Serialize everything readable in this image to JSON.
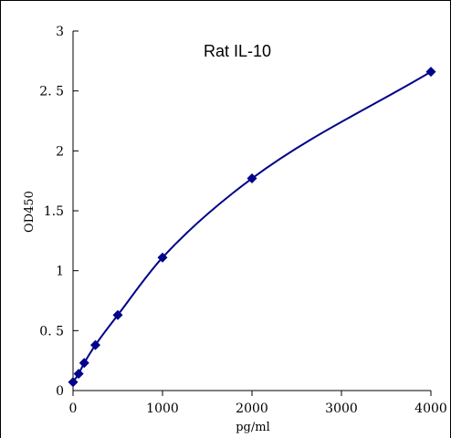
{
  "chart_data": {
    "type": "scatter",
    "title": "Rat IL-10",
    "xlabel": "pg/ml",
    "ylabel": "OD450",
    "xlim": [
      0,
      4000
    ],
    "ylim": [
      0,
      3
    ],
    "x_ticks": [
      "0",
      "1000",
      "2000",
      "3000",
      "4000"
    ],
    "y_ticks": [
      "0",
      "0. 5",
      "1",
      "1.5",
      "2",
      "2. 5",
      "3"
    ],
    "grid": false,
    "legend": "none",
    "series": [
      {
        "x": [
          0,
          62.5,
          125,
          250,
          500,
          1000,
          2000,
          4000
        ],
        "y": [
          0.07,
          0.14,
          0.23,
          0.38,
          0.63,
          1.11,
          1.77,
          2.66
        ],
        "marker": "diamond",
        "smooth_line": true
      }
    ],
    "colors": {
      "line": "#00008B",
      "marker": "#00008B"
    }
  }
}
